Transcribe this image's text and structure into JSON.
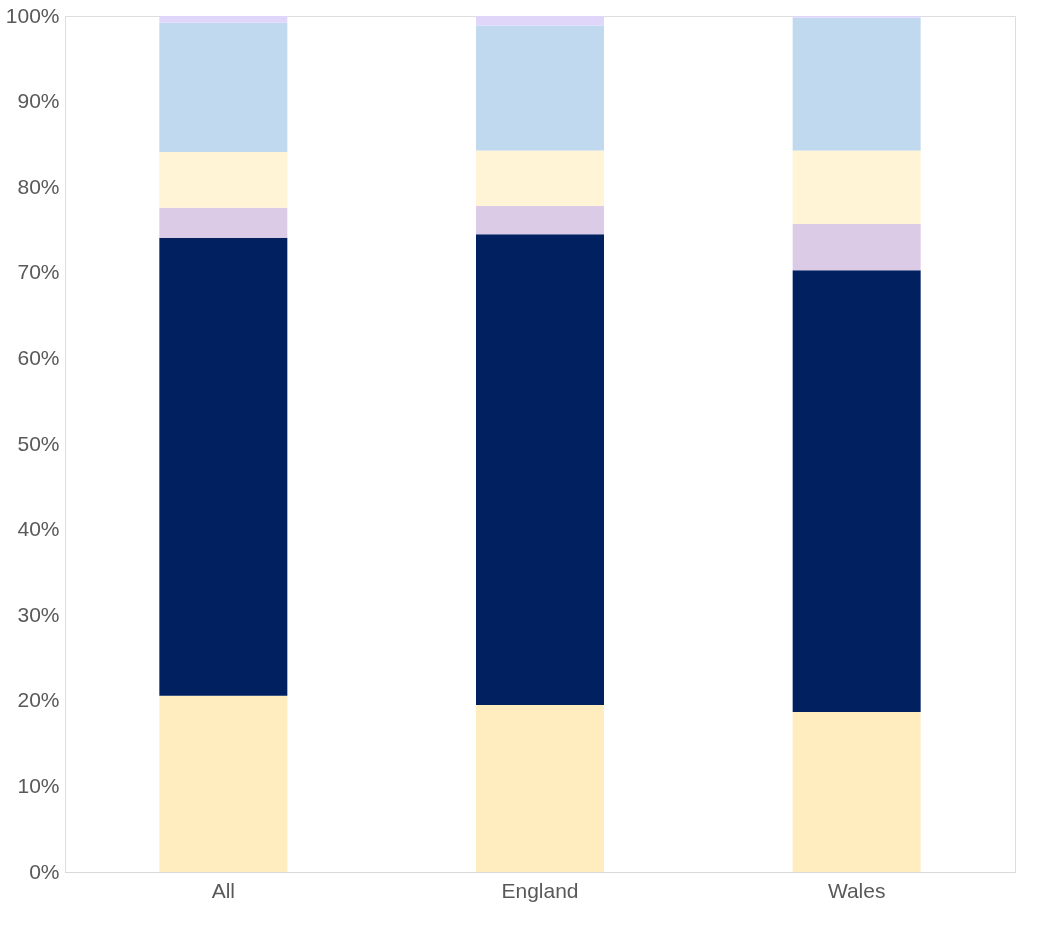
{
  "chart_data": {
    "type": "bar",
    "stacked": true,
    "categories": [
      "All",
      "England",
      "Wales"
    ],
    "series": [
      {
        "color": "#ffedc0",
        "values": [
          20.6,
          19.5,
          18.7
        ]
      },
      {
        "color": "#002060",
        "values": [
          53.5,
          55.0,
          51.6
        ]
      },
      {
        "color": "#dccbe6",
        "values": [
          3.5,
          3.3,
          5.4
        ]
      },
      {
        "color": "#fff4d6",
        "values": [
          6.5,
          6.5,
          8.6
        ]
      },
      {
        "color": "#c0d9ee",
        "values": [
          15.1,
          14.6,
          15.5
        ]
      },
      {
        "color": "#e0d6fa",
        "values": [
          0.8,
          1.1,
          0.2
        ]
      }
    ],
    "ylim": [
      0,
      100
    ],
    "yticks": [
      {
        "value": 0,
        "label": "0%"
      },
      {
        "value": 10,
        "label": "10%"
      },
      {
        "value": 20,
        "label": "20%"
      },
      {
        "value": 30,
        "label": "30%"
      },
      {
        "value": 40,
        "label": "40%"
      },
      {
        "value": 50,
        "label": "50%"
      },
      {
        "value": 60,
        "label": "60%"
      },
      {
        "value": 70,
        "label": "70%"
      },
      {
        "value": 80,
        "label": "80%"
      },
      {
        "value": 90,
        "label": "90%"
      },
      {
        "value": 100,
        "label": "100%"
      }
    ],
    "grid": false,
    "legend": false
  }
}
